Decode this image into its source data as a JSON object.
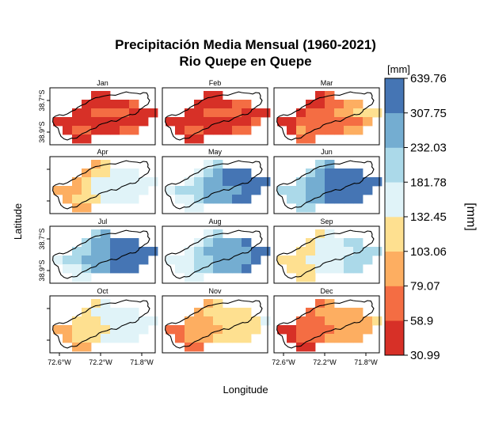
{
  "chart_data": {
    "type": "heatmap",
    "title": [
      "Precipitación Media Mensual (1960-2021)",
      "Rio Quepe en Quepe"
    ],
    "xlabel": "Longitude",
    "ylabel": "Latitude",
    "x_ticks": [
      "72.6°W",
      "72.2°W",
      "71.8°W"
    ],
    "y_ticks": [
      "38.9°S",
      "38.7°S"
    ],
    "colorbar": {
      "unit_top": "[mm]",
      "title": "[mm]",
      "breaks": [
        "30.99",
        "58.9",
        "79.07",
        "103.06",
        "132.45",
        "181.78",
        "232.03",
        "307.75",
        "639.76"
      ],
      "colors": [
        "#d73027",
        "#f46d43",
        "#fdae61",
        "#fee090",
        "#e0f3f8",
        "#abd9e9",
        "#74add1",
        "#4575b4"
      ]
    },
    "panels": [
      {
        "month": "Jan",
        "grid": [
          "    00     ",
          "   000001  ",
          "  001111000",
          "0000000000 ",
          " 01100011  ",
          "  00       "
        ]
      },
      {
        "month": "Feb",
        "grid": [
          "    00     ",
          "   000011  ",
          "  001111000",
          "0000000001 ",
          " 01100011  ",
          "  00       "
        ]
      },
      {
        "month": "Mar",
        "grid": [
          "    01     ",
          "   001122  ",
          "  011122333",
          "0011111112 ",
          " 02111122  ",
          "  11       "
        ]
      },
      {
        "month": "Apr",
        "grid": [
          "    23     ",
          "   233444  ",
          "  234444444",
          "2223444444 ",
          " 23334444  ",
          "  22       "
        ]
      },
      {
        "month": "May",
        "grid": [
          "    45     ",
          "   456777  ",
          "  456677777",
          "4555666677 ",
          " 44566677  ",
          "  44       "
        ]
      },
      {
        "month": "Jun",
        "grid": [
          "    56     ",
          "   567777  ",
          "  566777777",
          "5556677777 ",
          " 55667777  ",
          "  55       "
        ]
      },
      {
        "month": "Jul",
        "grid": [
          "    56     ",
          "   566777  ",
          "  556677777",
          "4556667777 ",
          " 44566777  ",
          "  44       "
        ]
      },
      {
        "month": "Aug",
        "grid": [
          "    45     ",
          "   456667  ",
          "  456666677",
          "4445566667 ",
          " 44556667  ",
          "  44       "
        ]
      },
      {
        "month": "Sep",
        "grid": [
          "    34     ",
          "   344455  ",
          "  334444555",
          "3334444555 ",
          " 33344455  ",
          "  33       "
        ]
      },
      {
        "month": "Oct",
        "grid": [
          "    34     ",
          "   344444  ",
          "  333444444",
          "2233334444 ",
          " 23334444  ",
          "  22       "
        ]
      },
      {
        "month": "Nov",
        "grid": [
          "    23     ",
          "   233333  ",
          "  222333334",
          "1122223333 ",
          " 12223333  ",
          "  11       "
        ]
      },
      {
        "month": "Dec",
        "grid": [
          "    12     ",
          "   122222  ",
          "  111222223",
          "0011112222 ",
          " 01112222  ",
          "  00       "
        ]
      }
    ]
  }
}
